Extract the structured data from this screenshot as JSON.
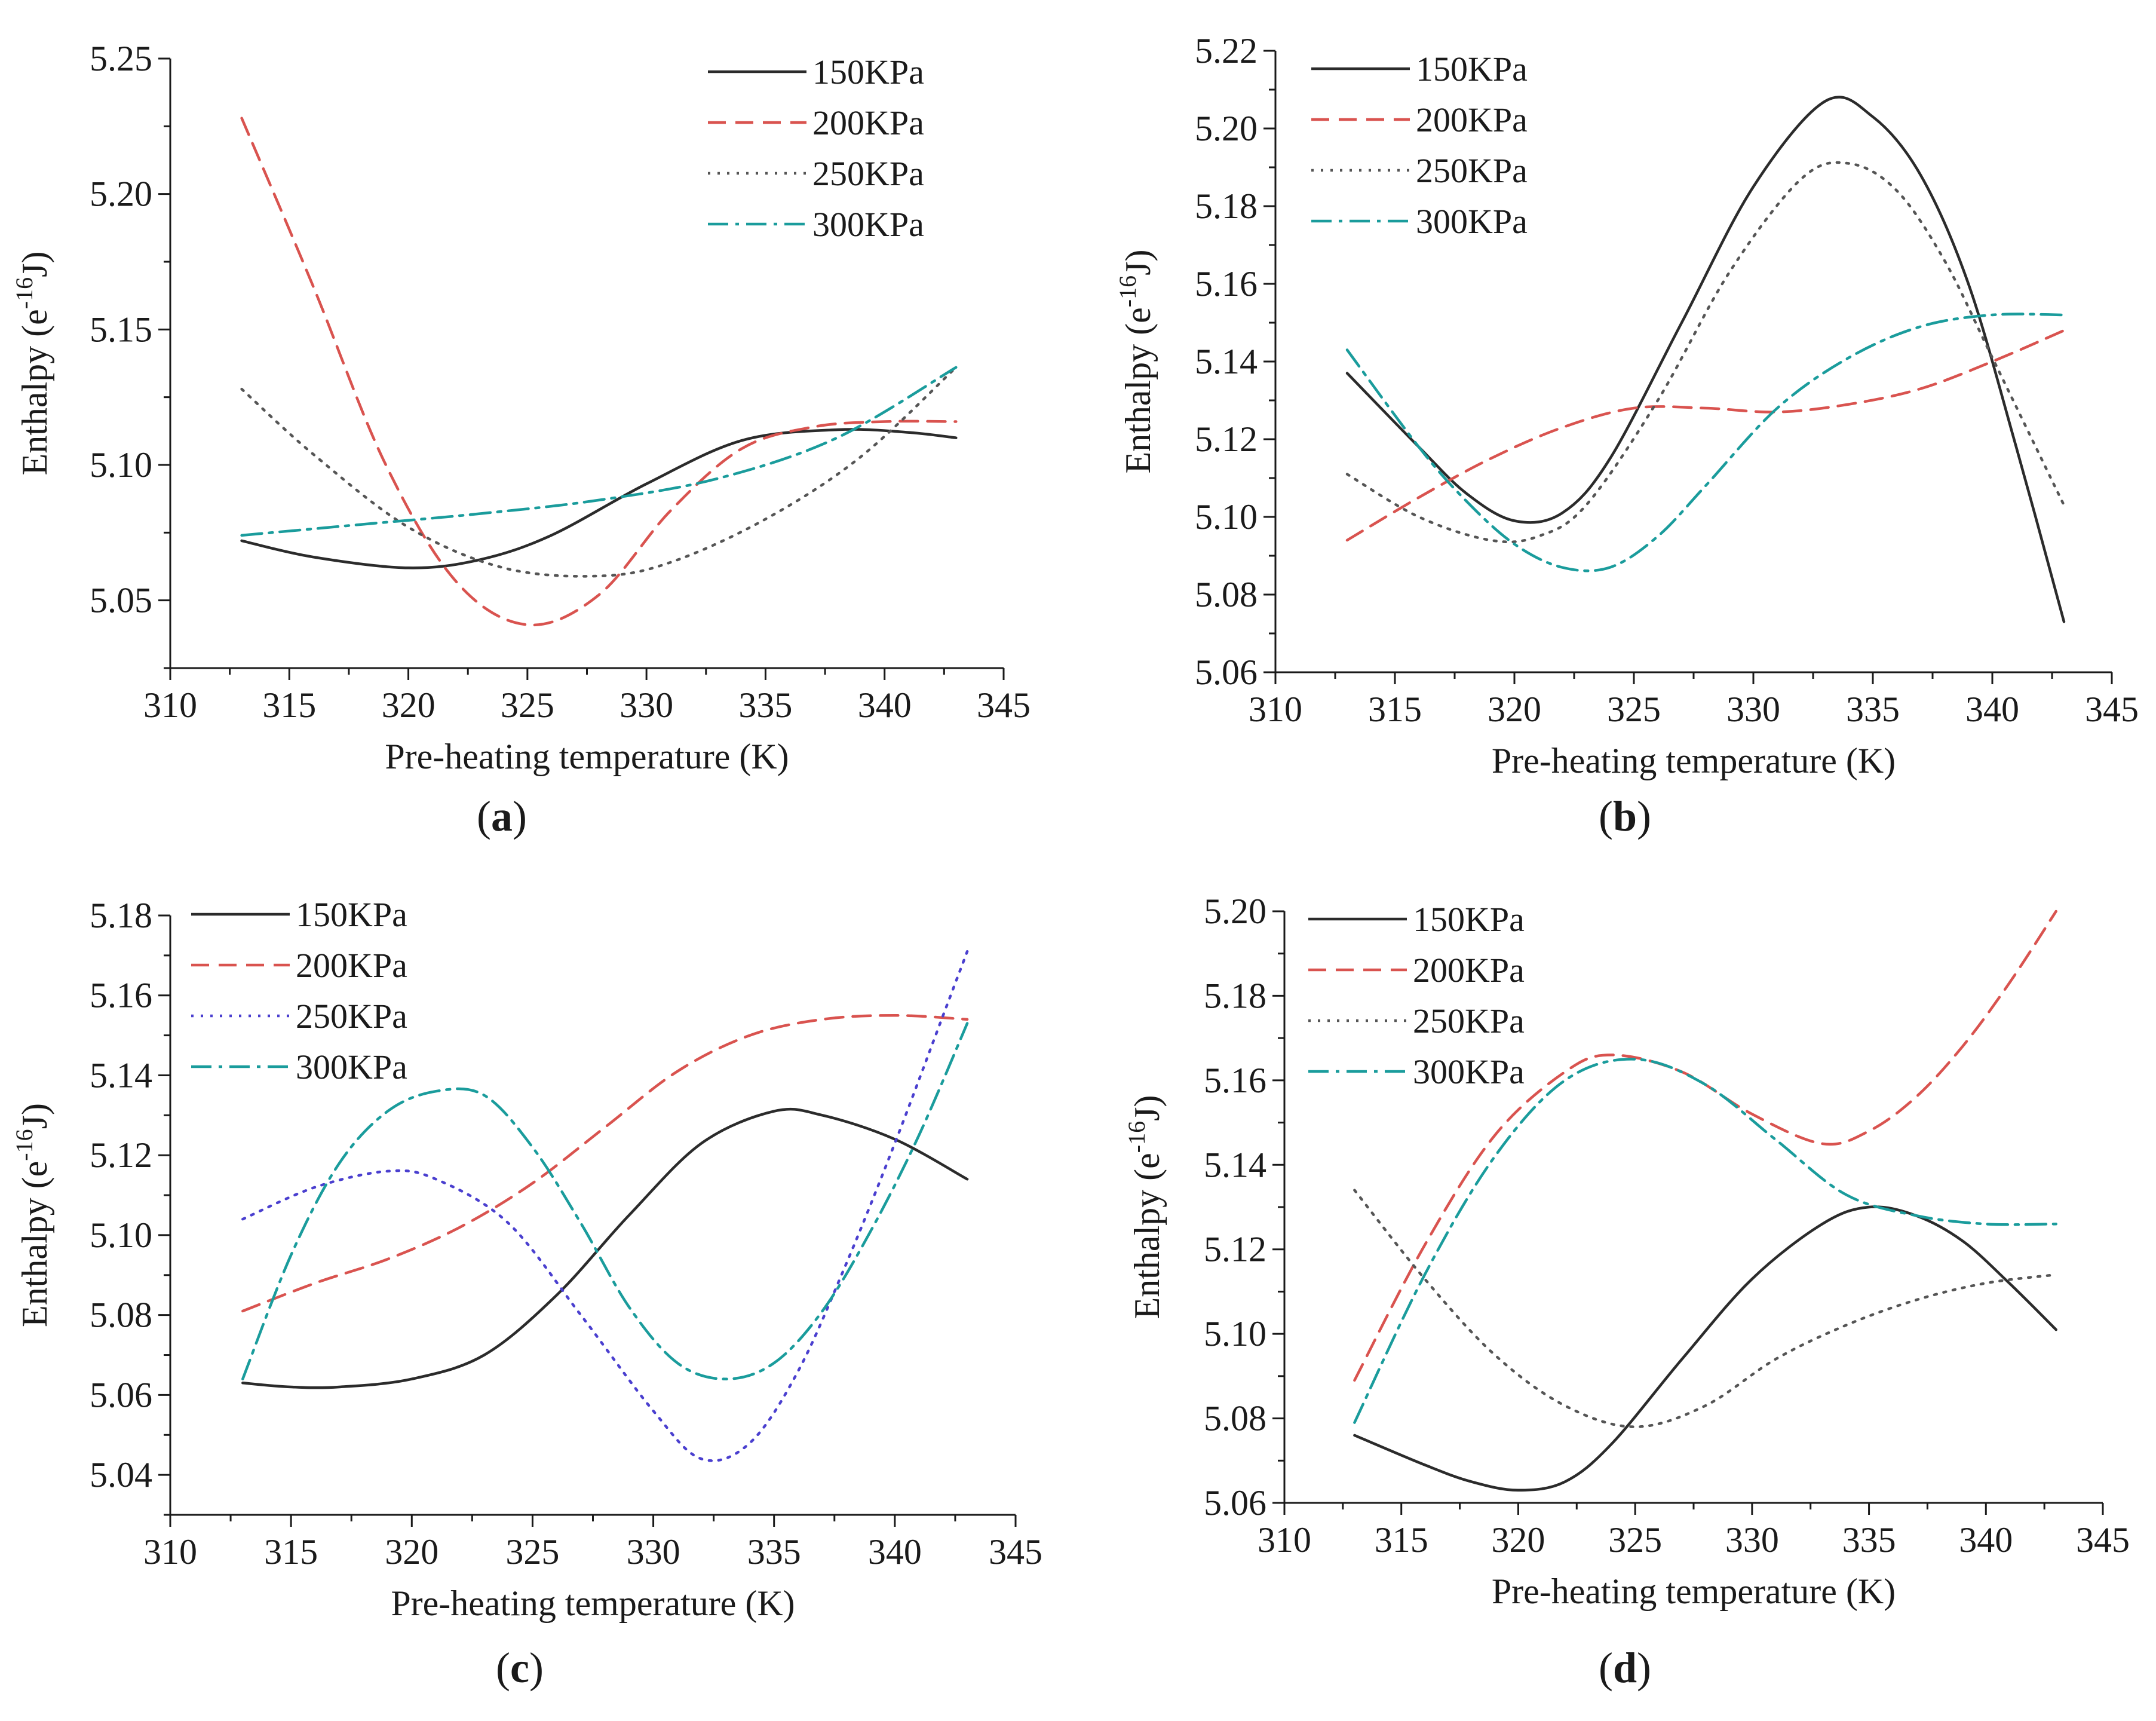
{
  "figure": {
    "panels": [
      "a",
      "b",
      "c",
      "d"
    ]
  },
  "style": {
    "axis_color": "#1a1a1a",
    "series_colors": {
      "150KPa": "#2b2b2b",
      "200KPa": "#d9534f",
      "250KPa": "#555555",
      "300KPa": "#1a9c9c"
    },
    "panel_c_250_color": "#4a3fcf"
  },
  "chart_data": [
    {
      "panel": "a",
      "type": "line",
      "panel_label": "(a)",
      "xlabel": "Pre-heating temperature (K)",
      "ylabel": "Enthalpy (e",
      "ylabel_sup": "-16",
      "ylabel_suffix": "J)",
      "xlim": [
        310,
        345
      ],
      "ylim": [
        5.025,
        5.25
      ],
      "xticks": [
        310,
        315,
        320,
        325,
        330,
        335,
        340,
        345
      ],
      "xtick_labels": [
        "310",
        "315",
        "320",
        "325",
        "330",
        "335",
        "340",
        "345"
      ],
      "yticks": [
        5.05,
        5.1,
        5.15,
        5.2,
        5.25
      ],
      "ytick_labels": [
        "5.05",
        "5.10",
        "5.15",
        "5.20",
        "5.25"
      ],
      "legend": "top-right",
      "series": [
        {
          "name": "150KPa",
          "dash": "solid",
          "points": [
            [
              313,
              5.072
            ],
            [
              316,
              5.066
            ],
            [
              320,
              5.062
            ],
            [
              323,
              5.065
            ],
            [
              326,
              5.074
            ],
            [
              330,
              5.093
            ],
            [
              334,
              5.109
            ],
            [
              338,
              5.113
            ],
            [
              341,
              5.112
            ],
            [
              343,
              5.11
            ]
          ]
        },
        {
          "name": "200KPa",
          "dash": "dashed",
          "points": [
            [
              313,
              5.228
            ],
            [
              316,
              5.166
            ],
            [
              319,
              5.101
            ],
            [
              322,
              5.057
            ],
            [
              325,
              5.041
            ],
            [
              328,
              5.052
            ],
            [
              331,
              5.083
            ],
            [
              334,
              5.106
            ],
            [
              337,
              5.114
            ],
            [
              340,
              5.116
            ],
            [
              343,
              5.116
            ]
          ]
        },
        {
          "name": "250KPa",
          "dash": "dotted",
          "points": [
            [
              313,
              5.128
            ],
            [
              316,
              5.104
            ],
            [
              320,
              5.077
            ],
            [
              324,
              5.062
            ],
            [
              328,
              5.059
            ],
            [
              331,
              5.064
            ],
            [
              335,
              5.08
            ],
            [
              339,
              5.103
            ],
            [
              343,
              5.136
            ]
          ]
        },
        {
          "name": "300KPa",
          "dash": "dashdot",
          "points": [
            [
              313,
              5.074
            ],
            [
              318,
              5.078
            ],
            [
              323,
              5.082
            ],
            [
              328,
              5.087
            ],
            [
              333,
              5.095
            ],
            [
              338,
              5.11
            ],
            [
              343,
              5.136
            ]
          ]
        }
      ]
    },
    {
      "panel": "b",
      "type": "line",
      "panel_label": "(b)",
      "xlabel": "Pre-heating temperature (K)",
      "ylabel": "Enthalpy (e",
      "ylabel_sup": "-16",
      "ylabel_suffix": "J)",
      "xlim": [
        310,
        345
      ],
      "ylim": [
        5.06,
        5.22
      ],
      "xticks": [
        310,
        315,
        320,
        325,
        330,
        335,
        340,
        345
      ],
      "xtick_labels": [
        "310",
        "315",
        "320",
        "325",
        "330",
        "335",
        "340",
        "345"
      ],
      "yticks": [
        5.06,
        5.08,
        5.1,
        5.12,
        5.14,
        5.16,
        5.18,
        5.2,
        5.22
      ],
      "ytick_labels": [
        "5.06",
        "5.08",
        "5.10",
        "5.12",
        "5.14",
        "5.16",
        "5.18",
        "5.20",
        "5.22"
      ],
      "legend": "top-left",
      "series": [
        {
          "name": "150KPa",
          "dash": "solid",
          "points": [
            [
              313,
              5.137
            ],
            [
              316,
              5.118
            ],
            [
              318,
              5.106
            ],
            [
              320,
              5.099
            ],
            [
              322,
              5.101
            ],
            [
              324,
              5.115
            ],
            [
              327,
              5.15
            ],
            [
              330,
              5.185
            ],
            [
              333,
              5.207
            ],
            [
              335,
              5.203
            ],
            [
              337,
              5.188
            ],
            [
              339,
              5.16
            ],
            [
              341,
              5.118
            ],
            [
              343,
              5.073
            ]
          ]
        },
        {
          "name": "200KPa",
          "dash": "dashed",
          "points": [
            [
              313,
              5.094
            ],
            [
              316,
              5.105
            ],
            [
              319,
              5.115
            ],
            [
              322,
              5.123
            ],
            [
              325,
              5.128
            ],
            [
              328,
              5.128
            ],
            [
              331,
              5.127
            ],
            [
              334,
              5.129
            ],
            [
              337,
              5.133
            ],
            [
              340,
              5.14
            ],
            [
              343,
              5.148
            ]
          ]
        },
        {
          "name": "250KPa",
          "dash": "dotted",
          "points": [
            [
              313,
              5.111
            ],
            [
              316,
              5.1
            ],
            [
              319,
              5.094
            ],
            [
              321,
              5.095
            ],
            [
              323,
              5.103
            ],
            [
              326,
              5.13
            ],
            [
              329,
              5.163
            ],
            [
              332,
              5.187
            ],
            [
              334,
              5.191
            ],
            [
              336,
              5.184
            ],
            [
              338,
              5.166
            ],
            [
              340,
              5.141
            ],
            [
              343,
              5.103
            ]
          ]
        },
        {
          "name": "300KPa",
          "dash": "dashdot",
          "points": [
            [
              313,
              5.143
            ],
            [
              316,
              5.118
            ],
            [
              318,
              5.104
            ],
            [
              320,
              5.093
            ],
            [
              322,
              5.087
            ],
            [
              324,
              5.087
            ],
            [
              326,
              5.095
            ],
            [
              328,
              5.108
            ],
            [
              331,
              5.128
            ],
            [
              334,
              5.141
            ],
            [
              337,
              5.149
            ],
            [
              340,
              5.152
            ],
            [
              343,
              5.152
            ]
          ]
        }
      ]
    },
    {
      "panel": "c",
      "type": "line",
      "panel_label": "(c)",
      "xlabel": "Pre-heating temperature (K)",
      "ylabel": "Enthalpy (e",
      "ylabel_sup": "-16",
      "ylabel_suffix": "J)",
      "xlim": [
        310,
        345
      ],
      "ylim": [
        5.03,
        5.18
      ],
      "xticks": [
        310,
        315,
        320,
        325,
        330,
        335,
        340,
        345
      ],
      "xtick_labels": [
        "310",
        "315",
        "320",
        "325",
        "330",
        "335",
        "340",
        "345"
      ],
      "yticks": [
        5.04,
        5.06,
        5.08,
        5.1,
        5.12,
        5.14,
        5.16,
        5.18
      ],
      "ytick_labels": [
        "5.04",
        "5.06",
        "5.08",
        "5.10",
        "5.12",
        "5.14",
        "5.16",
        "5.18"
      ],
      "legend": "top-left",
      "series": [
        {
          "name": "150KPa",
          "dash": "solid",
          "points": [
            [
              313,
              5.063
            ],
            [
              315,
              5.062
            ],
            [
              317,
              5.062
            ],
            [
              320,
              5.064
            ],
            [
              323,
              5.07
            ],
            [
              326,
              5.085
            ],
            [
              329,
              5.105
            ],
            [
              332,
              5.123
            ],
            [
              335,
              5.131
            ],
            [
              337,
              5.13
            ],
            [
              340,
              5.124
            ],
            [
              343,
              5.114
            ]
          ]
        },
        {
          "name": "200KPa",
          "dash": "dashed",
          "points": [
            [
              313,
              5.081
            ],
            [
              316,
              5.088
            ],
            [
              319,
              5.094
            ],
            [
              322,
              5.102
            ],
            [
              325,
              5.113
            ],
            [
              328,
              5.127
            ],
            [
              331,
              5.141
            ],
            [
              334,
              5.15
            ],
            [
              337,
              5.154
            ],
            [
              340,
              5.155
            ],
            [
              343,
              5.154
            ]
          ]
        },
        {
          "name": "250KPa",
          "dash": "dotted",
          "points": [
            [
              313,
              5.104
            ],
            [
              316,
              5.112
            ],
            [
              319,
              5.116
            ],
            [
              321,
              5.114
            ],
            [
              324,
              5.103
            ],
            [
              327,
              5.08
            ],
            [
              330,
              5.056
            ],
            [
              332,
              5.044
            ],
            [
              334,
              5.048
            ],
            [
              336,
              5.066
            ],
            [
              338,
              5.093
            ],
            [
              340,
              5.123
            ],
            [
              342,
              5.155
            ],
            [
              343,
              5.171
            ]
          ]
        },
        {
          "name": "300KPa",
          "dash": "dashdot",
          "points": [
            [
              313,
              5.064
            ],
            [
              315,
              5.095
            ],
            [
              317,
              5.118
            ],
            [
              319,
              5.131
            ],
            [
              321,
              5.136
            ],
            [
              323,
              5.135
            ],
            [
              325,
              5.122
            ],
            [
              327,
              5.103
            ],
            [
              329,
              5.082
            ],
            [
              331,
              5.068
            ],
            [
              333,
              5.064
            ],
            [
              335,
              5.068
            ],
            [
              337,
              5.081
            ],
            [
              339,
              5.101
            ],
            [
              341,
              5.125
            ],
            [
              343,
              5.153
            ]
          ]
        }
      ]
    },
    {
      "panel": "d",
      "type": "line",
      "panel_label": "(d)",
      "xlabel": "Pre-heating temperature (K)",
      "ylabel": "Enthalpy (e",
      "ylabel_sup": "-16",
      "ylabel_suffix": "J)",
      "xlim": [
        310,
        345
      ],
      "ylim": [
        5.06,
        5.2
      ],
      "xticks": [
        310,
        315,
        320,
        325,
        330,
        335,
        340,
        345
      ],
      "xtick_labels": [
        "310",
        "315",
        "320",
        "325",
        "330",
        "335",
        "340",
        "345"
      ],
      "yticks": [
        5.06,
        5.08,
        5.1,
        5.12,
        5.14,
        5.16,
        5.18,
        5.2
      ],
      "ytick_labels": [
        "5.06",
        "5.08",
        "5.10",
        "5.12",
        "5.14",
        "5.16",
        "5.18",
        "5.20"
      ],
      "legend": "top-left",
      "series": [
        {
          "name": "150KPa",
          "dash": "solid",
          "points": [
            [
              313,
              5.076
            ],
            [
              316,
              5.069
            ],
            [
              318,
              5.065
            ],
            [
              320,
              5.063
            ],
            [
              322,
              5.065
            ],
            [
              324,
              5.074
            ],
            [
              327,
              5.094
            ],
            [
              330,
              5.113
            ],
            [
              333,
              5.126
            ],
            [
              335,
              5.13
            ],
            [
              337,
              5.128
            ],
            [
              339,
              5.122
            ],
            [
              341,
              5.112
            ],
            [
              343,
              5.101
            ]
          ]
        },
        {
          "name": "200KPa",
          "dash": "dashed",
          "points": [
            [
              313,
              5.089
            ],
            [
              316,
              5.121
            ],
            [
              319,
              5.147
            ],
            [
              322,
              5.162
            ],
            [
              324,
              5.166
            ],
            [
              327,
              5.162
            ],
            [
              330,
              5.152
            ],
            [
              333,
              5.145
            ],
            [
              335,
              5.148
            ],
            [
              337,
              5.156
            ],
            [
              339,
              5.168
            ],
            [
              341,
              5.183
            ],
            [
              343,
              5.2
            ]
          ]
        },
        {
          "name": "250KPa",
          "dash": "dotted",
          "points": [
            [
              313,
              5.134
            ],
            [
              316,
              5.113
            ],
            [
              319,
              5.095
            ],
            [
              322,
              5.083
            ],
            [
              325,
              5.078
            ],
            [
              328,
              5.083
            ],
            [
              331,
              5.094
            ],
            [
              334,
              5.102
            ],
            [
              337,
              5.108
            ],
            [
              340,
              5.112
            ],
            [
              343,
              5.114
            ]
          ]
        },
        {
          "name": "300KPa",
          "dash": "dashdot",
          "points": [
            [
              313,
              5.079
            ],
            [
              316,
              5.114
            ],
            [
              319,
              5.142
            ],
            [
              322,
              5.16
            ],
            [
              325,
              5.165
            ],
            [
              328,
              5.159
            ],
            [
              331,
              5.146
            ],
            [
              334,
              5.133
            ],
            [
              337,
              5.128
            ],
            [
              340,
              5.126
            ],
            [
              343,
              5.126
            ]
          ]
        }
      ]
    }
  ]
}
